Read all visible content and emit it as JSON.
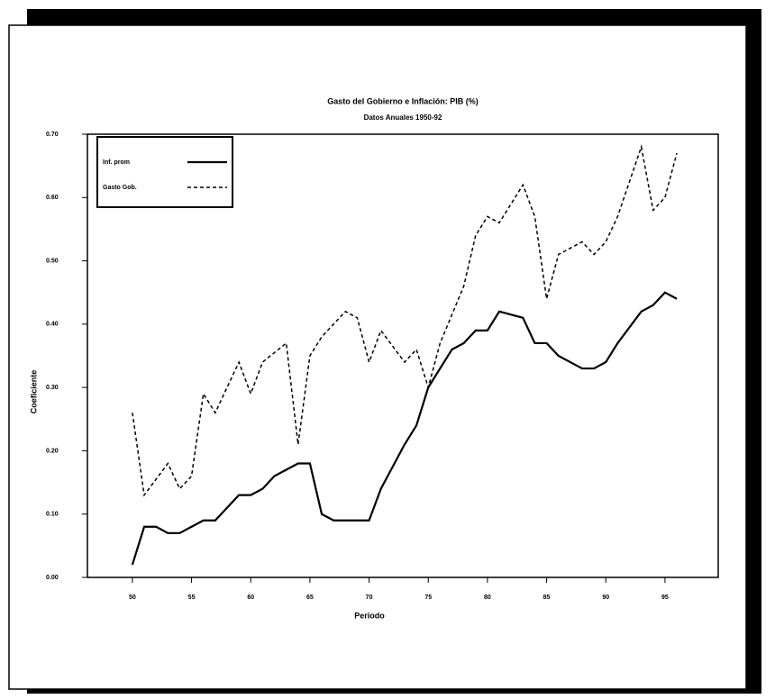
{
  "chart_data": {
    "type": "line",
    "title": "Gasto del Gobierno e Inflación: PIB (%)",
    "subtitle": "Datos Anuales 1950-92",
    "x_label": "Periodo",
    "y_label": "Coeficiente",
    "xlim": [
      46.2,
      99.5
    ],
    "ylim": [
      0,
      0.7
    ],
    "xticks": [
      50,
      55,
      60,
      65,
      70,
      75,
      80,
      85,
      90,
      95
    ],
    "yticks": [
      {
        "value": 0,
        "label": "0.00"
      },
      {
        "value": 0.1,
        "label": "0.10"
      },
      {
        "value": 0.2,
        "label": "0.20"
      },
      {
        "value": 0.3,
        "label": "0.30"
      },
      {
        "value": 0.4,
        "label": "0.40"
      },
      {
        "value": 0.5,
        "label": "0.50"
      },
      {
        "value": 0.6,
        "label": "0.60"
      },
      {
        "value": 0.7,
        "label": "0.70"
      }
    ],
    "legend": "top-left",
    "series": [
      {
        "name": "Inf. prom",
        "color": "#000000",
        "dash": "solid",
        "x": [
          50,
          51,
          52,
          53,
          54,
          55,
          56,
          57,
          59,
          60,
          61,
          62,
          63,
          64,
          65,
          66,
          67,
          69,
          70,
          71,
          73,
          74,
          75,
          77,
          78,
          79,
          80,
          81,
          83,
          84,
          85,
          86,
          88,
          89,
          90,
          91,
          93,
          94,
          95,
          96
        ],
        "values": [
          0.02,
          0.08,
          0.08,
          0.07,
          0.07,
          0.08,
          0.09,
          0.09,
          0.13,
          0.13,
          0.14,
          0.16,
          0.17,
          0.18,
          0.18,
          0.1,
          0.09,
          0.09,
          0.09,
          0.14,
          0.21,
          0.24,
          0.3,
          0.36,
          0.37,
          0.39,
          0.39,
          0.42,
          0.41,
          0.37,
          0.37,
          0.35,
          0.33,
          0.33,
          0.34,
          0.37,
          0.42,
          0.43,
          0.45,
          0.44
        ]
      },
      {
        "name": "Gasto Gob.",
        "color": "#000000",
        "dash": "dashed",
        "x": [
          50,
          51,
          53,
          54,
          55,
          56,
          57,
          59,
          60,
          61,
          63,
          64,
          65,
          66,
          68,
          69,
          70,
          71,
          73,
          74,
          75,
          76,
          78,
          79,
          80,
          81,
          83,
          84,
          85,
          86,
          88,
          89,
          90,
          91,
          93,
          94,
          95,
          96
        ],
        "values": [
          0.26,
          0.13,
          0.18,
          0.14,
          0.16,
          0.29,
          0.26,
          0.34,
          0.29,
          0.34,
          0.37,
          0.21,
          0.35,
          0.38,
          0.42,
          0.41,
          0.34,
          0.39,
          0.34,
          0.36,
          0.3,
          0.37,
          0.46,
          0.54,
          0.57,
          0.56,
          0.62,
          0.57,
          0.44,
          0.51,
          0.53,
          0.51,
          0.53,
          0.57,
          0.68,
          0.58,
          0.6,
          0.67
        ]
      }
    ]
  }
}
